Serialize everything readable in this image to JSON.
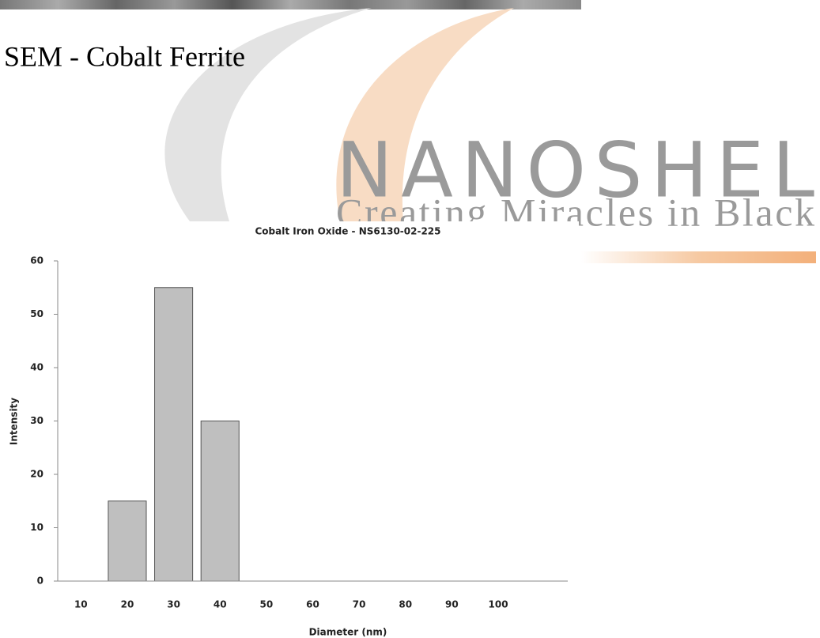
{
  "heading": "SEM - Cobalt Ferrite",
  "watermark": {
    "brand": "NANOSHEL",
    "tagline": "Creating Miracles in Black"
  },
  "chart_data": {
    "type": "bar",
    "title": "Cobalt Iron Oxide - NS6130-02-225",
    "x_label": "Diameter (nm)",
    "y_label": "Intensity",
    "categories": [
      "10",
      "20",
      "30",
      "40",
      "50",
      "60",
      "70",
      "80",
      "90",
      "100",
      null
    ],
    "values": [
      0,
      15,
      55,
      30,
      0,
      0,
      0,
      0,
      0,
      0,
      0
    ],
    "color": "#bfbfbf",
    "ylim": [
      0,
      60
    ],
    "yticks": [
      0,
      10,
      20,
      30,
      40,
      50,
      60
    ],
    "grid": false
  }
}
